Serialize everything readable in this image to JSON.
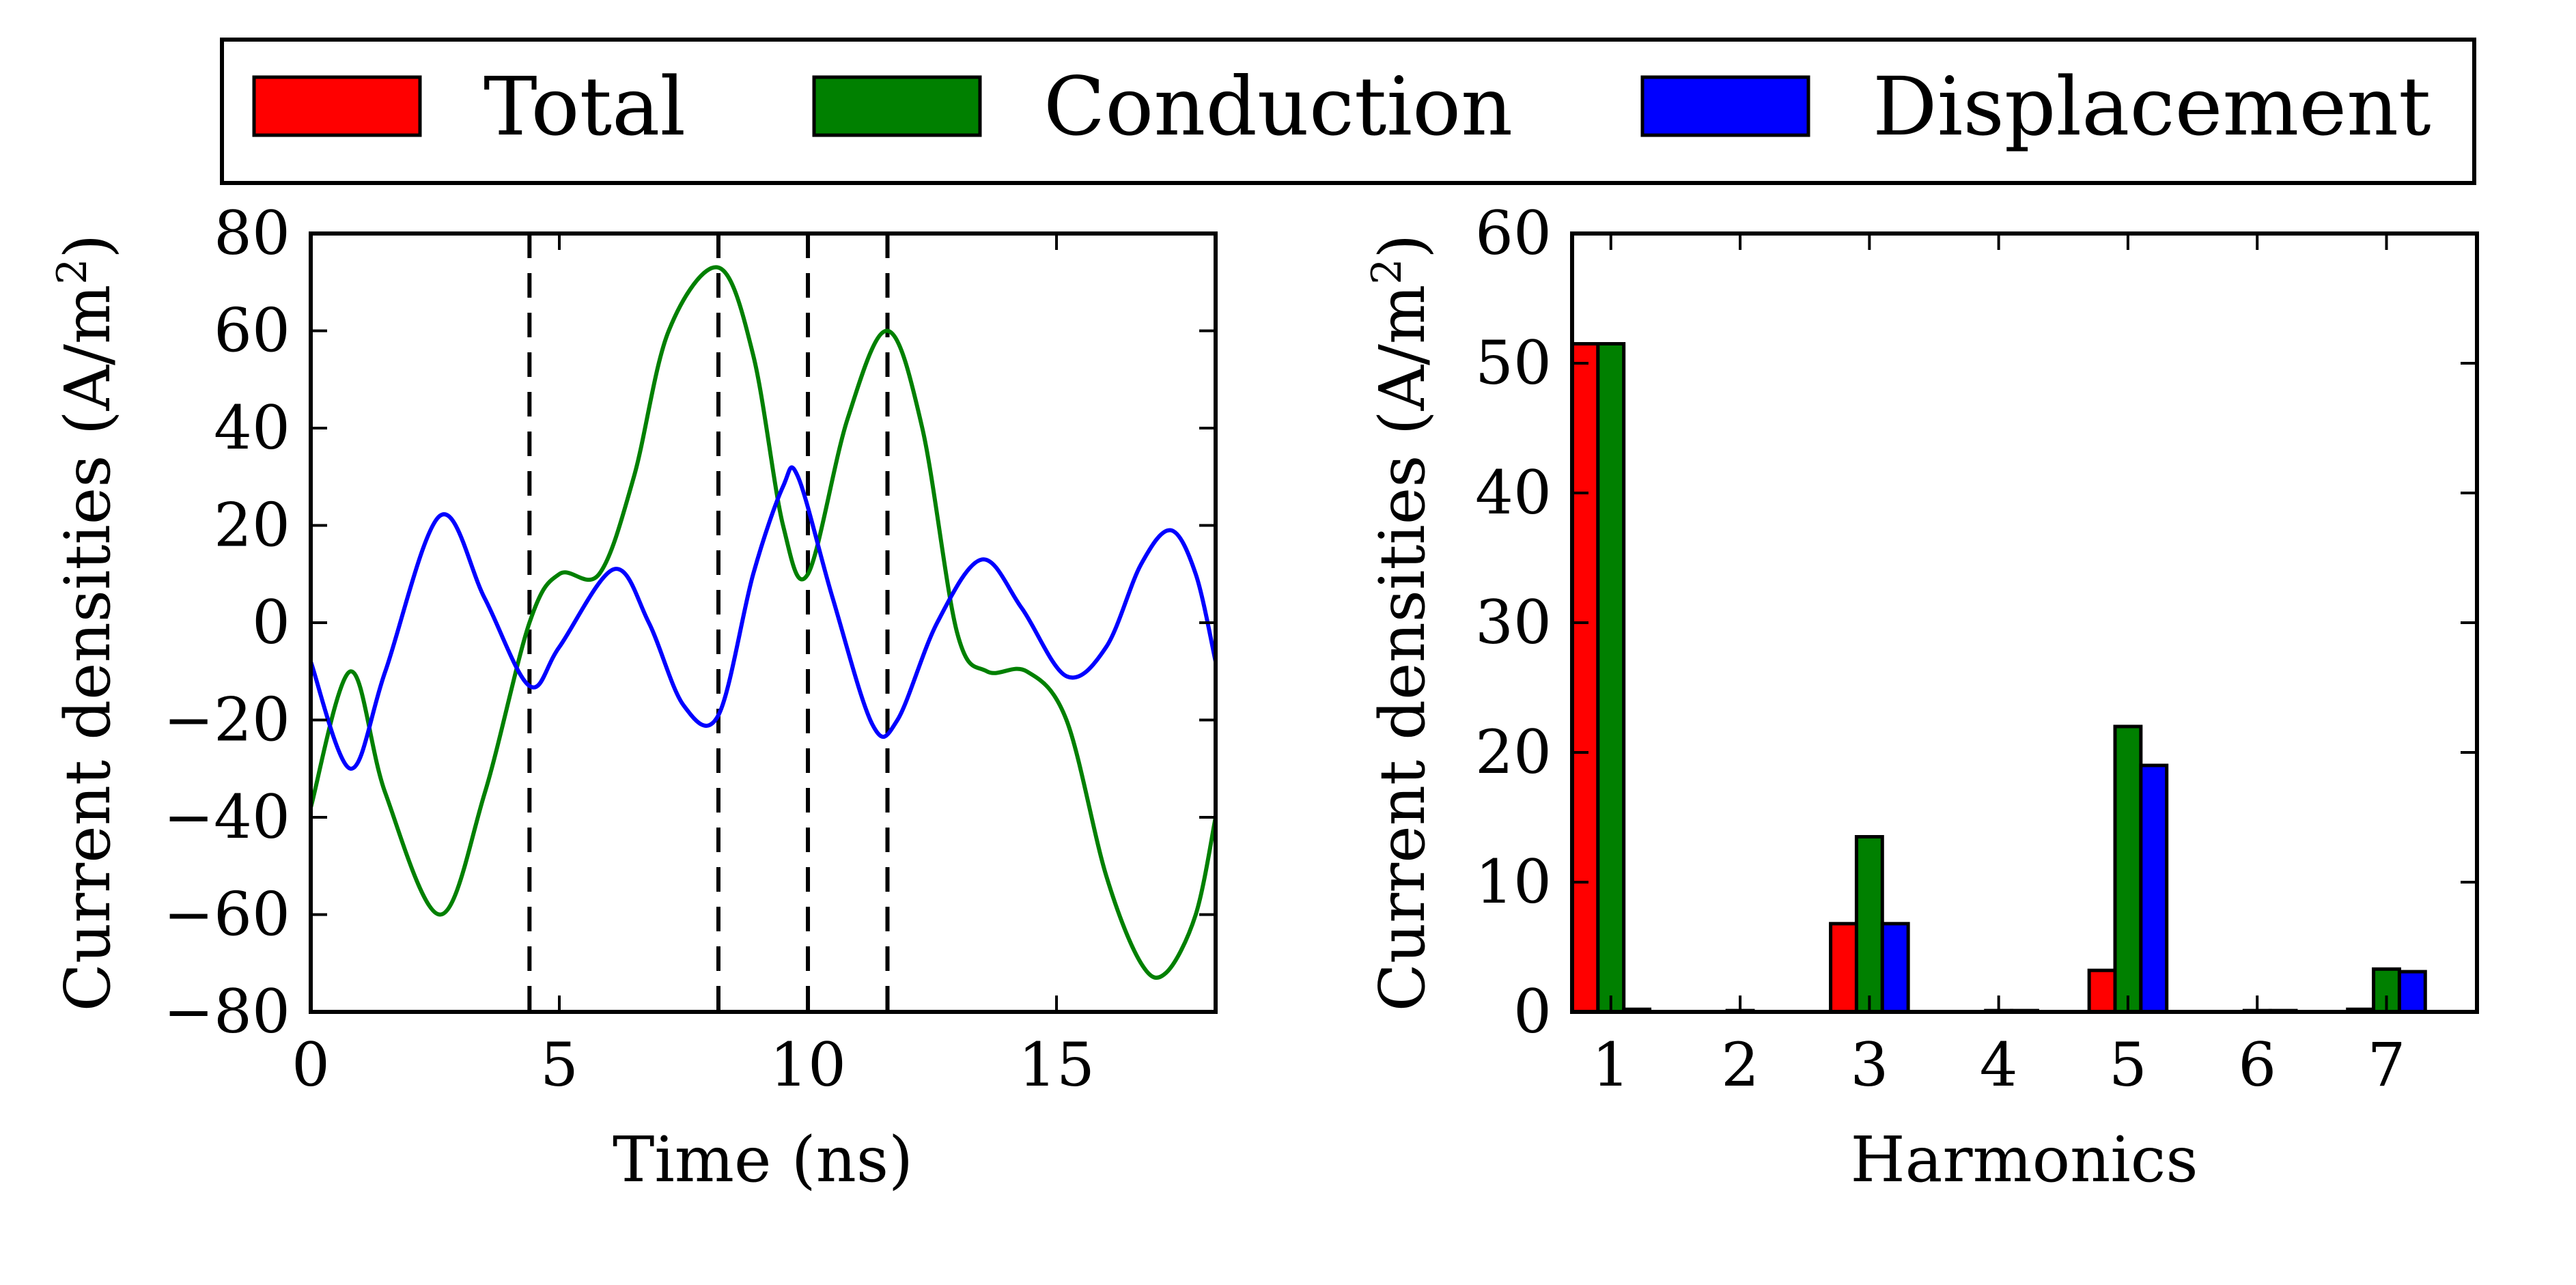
{
  "legend": {
    "entries": [
      {
        "label": "Total",
        "color": "#ff0000"
      },
      {
        "label": "Conduction",
        "color": "#008000"
      },
      {
        "label": "Displacement",
        "color": "#0000ff"
      }
    ]
  },
  "chart_data": [
    {
      "type": "line",
      "title": "",
      "xlabel": "Time (ns)",
      "ylabel": "Current densities (A/m²)",
      "ylabel_main": "Current densities (A/m",
      "ylabel_sup": "2",
      "ylabel_end": ")",
      "xlim": [
        0,
        18.2
      ],
      "ylim": [
        -80,
        80
      ],
      "xticks": [
        0,
        5,
        10,
        15
      ],
      "xtick_labels": [
        "0",
        "5",
        "10",
        "15"
      ],
      "yticks": [
        -80,
        -60,
        -40,
        -20,
        0,
        20,
        40,
        60,
        80
      ],
      "ytick_labels": [
        "−80",
        "−60",
        "−40",
        "−20",
        "0",
        "20",
        "40",
        "60",
        "80"
      ],
      "vlines": [
        4.4,
        8.2,
        10.0,
        11.6
      ],
      "series": [
        {
          "name": "Conduction",
          "color": "#008000",
          "x": [
            0,
            0.8,
            1.5,
            2.6,
            3.5,
            4.4,
            5.0,
            5.8,
            6.5,
            7.2,
            8.2,
            8.9,
            9.5,
            10.0,
            10.8,
            11.6,
            12.3,
            13.0,
            13.6,
            14.4,
            15.2,
            16.0,
            16.7,
            17.2,
            17.8,
            18.2
          ],
          "y": [
            -38,
            -10,
            -35,
            -60,
            -35,
            0,
            10,
            10,
            30,
            60,
            73,
            55,
            20,
            10,
            42,
            60,
            40,
            -2,
            -10,
            -10,
            -20,
            -52,
            -70,
            -72,
            -60,
            -40
          ]
        },
        {
          "name": "Displacement",
          "color": "#0000ff",
          "x": [
            0,
            0.8,
            1.5,
            2.6,
            3.5,
            4.4,
            5.0,
            6.1,
            6.8,
            7.5,
            8.2,
            8.9,
            9.5,
            9.8,
            10.5,
            11.3,
            11.8,
            12.6,
            13.5,
            14.3,
            15.2,
            16.0,
            16.7,
            17.3,
            17.8,
            18.2
          ],
          "y": [
            -8,
            -30,
            -10,
            22,
            5,
            -13,
            -5,
            11,
            0,
            -17,
            -19,
            10,
            28,
            30,
            5,
            -21,
            -20,
            0,
            13,
            3,
            -11,
            -5,
            12,
            19,
            10,
            -8
          ]
        }
      ]
    },
    {
      "type": "bar",
      "title": "",
      "xlabel": "Harmonics",
      "ylabel": "Current densities (A/m²)",
      "ylabel_main": "Current densities (A/m",
      "ylabel_sup": "2",
      "ylabel_end": ")",
      "categories": [
        "1",
        "2",
        "3",
        "4",
        "5",
        "6",
        "7"
      ],
      "xlim": [
        0.7,
        7.7
      ],
      "ylim": [
        0,
        60
      ],
      "yticks": [
        0,
        10,
        20,
        30,
        40,
        50,
        60
      ],
      "ytick_labels": [
        "0",
        "10",
        "20",
        "30",
        "40",
        "50",
        "60"
      ],
      "series": [
        {
          "name": "Total",
          "color": "#ff0000",
          "values": [
            51.5,
            0,
            6.8,
            0,
            3.2,
            0,
            0.2
          ]
        },
        {
          "name": "Conduction",
          "color": "#008000",
          "values": [
            51.5,
            0.1,
            13.5,
            0.1,
            22,
            0.1,
            3.3
          ]
        },
        {
          "name": "Displacement",
          "color": "#0000ff",
          "values": [
            0.2,
            0,
            6.8,
            0.1,
            19,
            0.1,
            3.1
          ]
        }
      ]
    }
  ]
}
